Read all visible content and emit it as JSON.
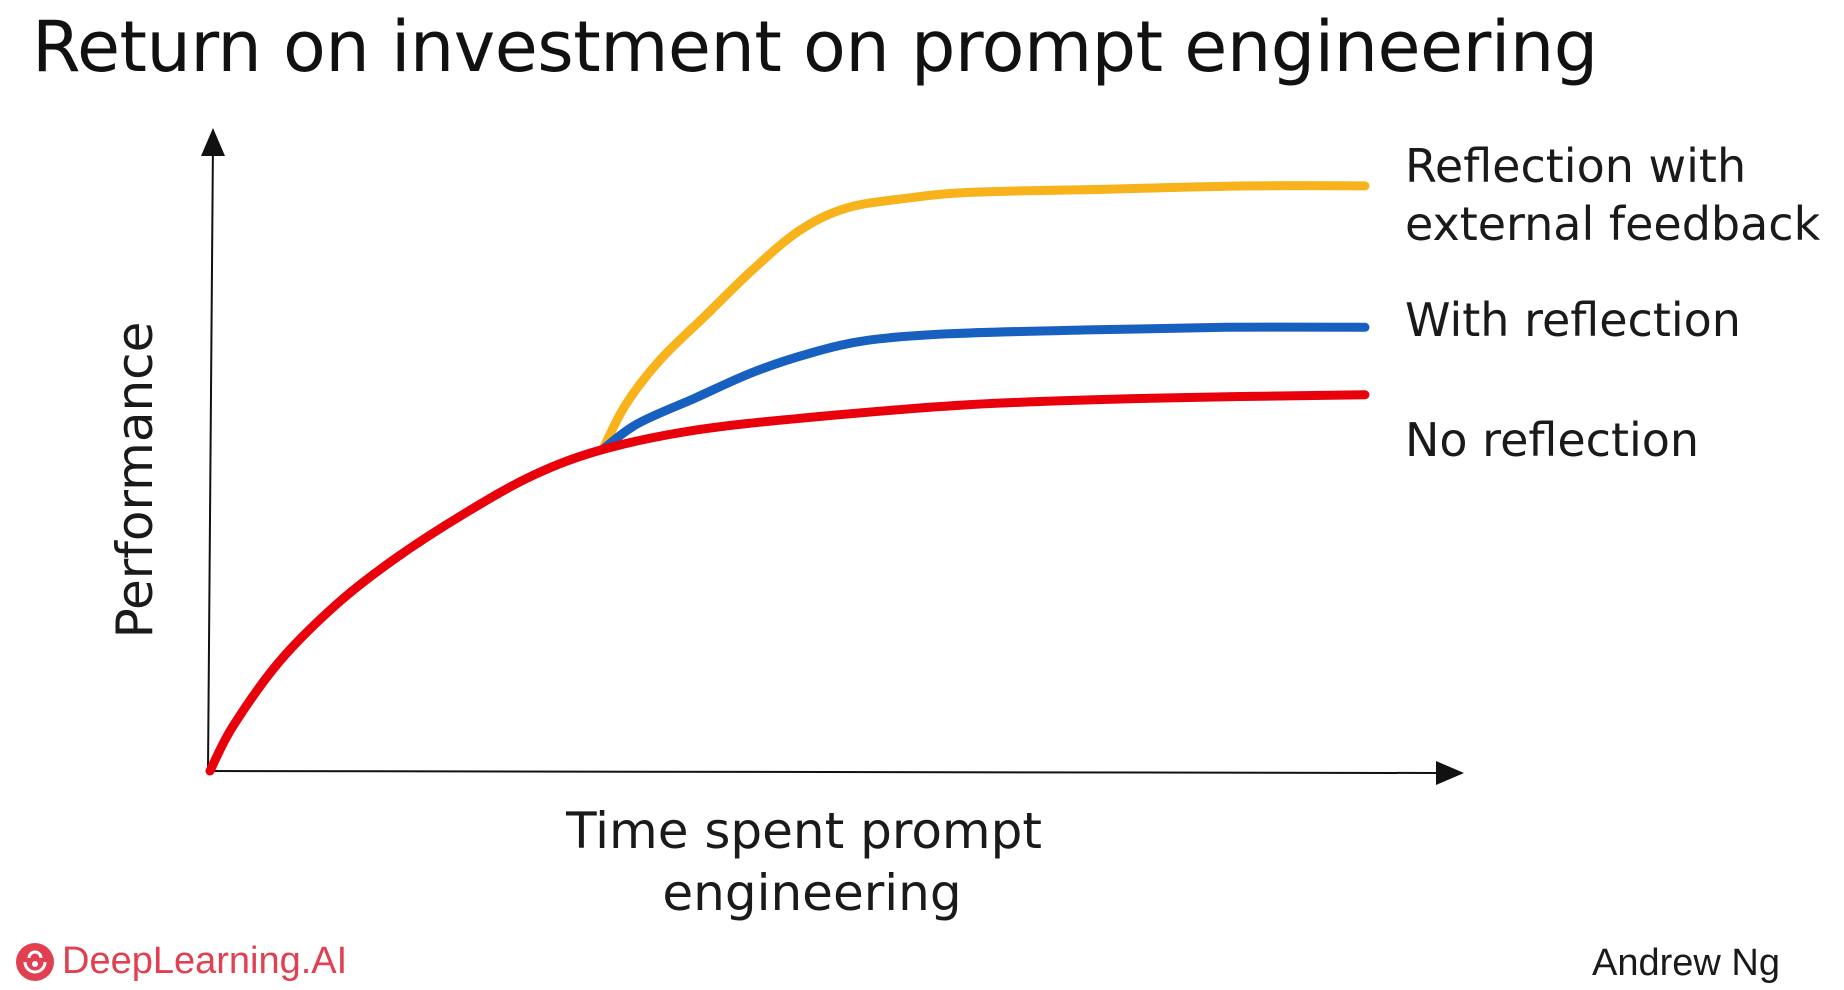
{
  "title": "Return on investment on prompt engineering",
  "chart_data": {
    "type": "line",
    "xlabel": [
      "Time spent prompt",
      "engineering"
    ],
    "ylabel": "Performance",
    "ticks": "none",
    "grid": false,
    "legend": "right (inline labels at line ends)",
    "series": [
      {
        "name": "No reflection",
        "color": "#e8000b",
        "points": [
          [
            0,
            0
          ],
          [
            0.02,
            0.07
          ],
          [
            0.06,
            0.17
          ],
          [
            0.11,
            0.26
          ],
          [
            0.16,
            0.33
          ],
          [
            0.22,
            0.4
          ],
          [
            0.28,
            0.46
          ],
          [
            0.34,
            0.5
          ],
          [
            0.42,
            0.53
          ],
          [
            0.52,
            0.55
          ],
          [
            0.66,
            0.57
          ],
          [
            0.82,
            0.58
          ],
          [
            1.0,
            0.585
          ]
        ]
      },
      {
        "name": "With reflection",
        "color": "#1760c0",
        "points": [
          [
            0.34,
            0.5
          ],
          [
            0.37,
            0.54
          ],
          [
            0.42,
            0.58
          ],
          [
            0.47,
            0.62
          ],
          [
            0.52,
            0.65
          ],
          [
            0.57,
            0.67
          ],
          [
            0.64,
            0.68
          ],
          [
            0.76,
            0.686
          ],
          [
            0.88,
            0.69
          ],
          [
            1.0,
            0.69
          ]
        ]
      },
      {
        "name": [
          "Reflection with",
          "external feedback"
        ],
        "color": "#f8b21b",
        "points": [
          [
            0.34,
            0.5
          ],
          [
            0.36,
            0.57
          ],
          [
            0.39,
            0.64
          ],
          [
            0.43,
            0.71
          ],
          [
            0.47,
            0.78
          ],
          [
            0.51,
            0.84
          ],
          [
            0.55,
            0.875
          ],
          [
            0.6,
            0.89
          ],
          [
            0.66,
            0.9
          ],
          [
            0.78,
            0.905
          ],
          [
            0.9,
            0.91
          ],
          [
            1.0,
            0.91
          ]
        ]
      }
    ]
  },
  "footer": {
    "brand": "DeepLearning.AI",
    "brand_color": "#e0404f",
    "author": "Andrew Ng"
  }
}
